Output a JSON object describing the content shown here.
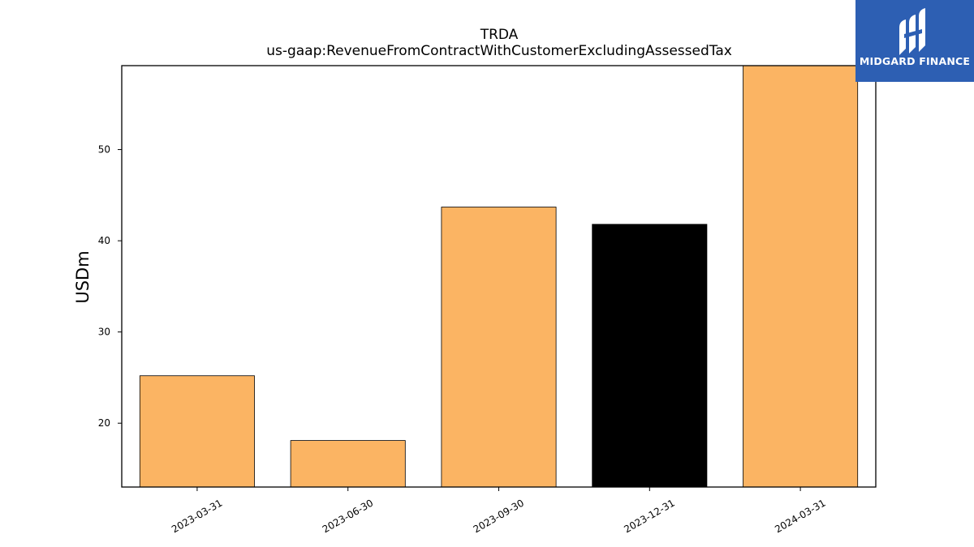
{
  "brand": {
    "name": "MIDGARD FINANCE",
    "logo_icon": "midgard-logo-icon",
    "background": "#2d5fb3"
  },
  "chart_data": {
    "type": "bar",
    "title": "TRDA",
    "subtitle": "us-gaap:RevenueFromContractWithCustomerExcludingAssessedTax",
    "xlabel": "",
    "ylabel": "USDm",
    "categories": [
      "2023-03-31",
      "2023-06-30",
      "2023-09-30",
      "2023-12-31",
      "2024-03-31"
    ],
    "values": [
      25.2,
      18.1,
      43.7,
      41.8,
      59.2
    ],
    "bar_colors": [
      "#fbb463",
      "#fbb463",
      "#fbb463",
      "#000000",
      "#fbb463"
    ],
    "ylim": [
      13,
      59.2
    ],
    "yticks": [
      20,
      30,
      40,
      50
    ],
    "grid": false,
    "legend": "none"
  }
}
